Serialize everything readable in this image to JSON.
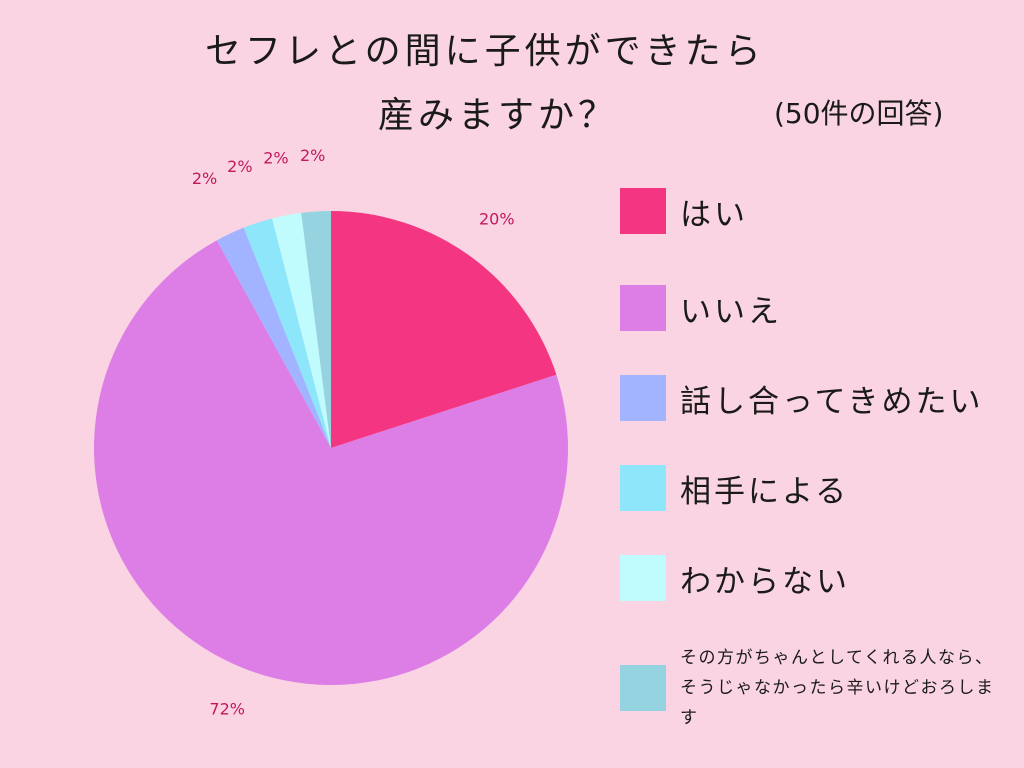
{
  "title_line1": "セフレとの間に子供ができたら",
  "title_line2": "産みますか？",
  "responses_note": "(50件の回答)",
  "chart_data": {
    "type": "pie",
    "title": "セフレとの間に子供ができたら 産みますか？",
    "subtitle": "(50件の回答)",
    "legend_position": "right",
    "slices": [
      {
        "label": "はい",
        "value": 20,
        "value_label": "20%",
        "color": "#f43682"
      },
      {
        "label": "いいえ",
        "value": 72,
        "value_label": "72%",
        "color": "#dc7ee6"
      },
      {
        "label": "話し合ってきめたい",
        "value": 2,
        "value_label": "2%",
        "color": "#a2b3ff"
      },
      {
        "label": "相手による",
        "value": 2,
        "value_label": "2%",
        "color": "#8ee6fb"
      },
      {
        "label": "わからない",
        "value": 2,
        "value_label": "2%",
        "color": "#c0fbfd"
      },
      {
        "label": "その方がちゃんとしてくれる人なら、そうじゃなかったら辛いけどおろします",
        "value": 2,
        "value_label": "2%",
        "color": "#94d3df"
      }
    ]
  }
}
